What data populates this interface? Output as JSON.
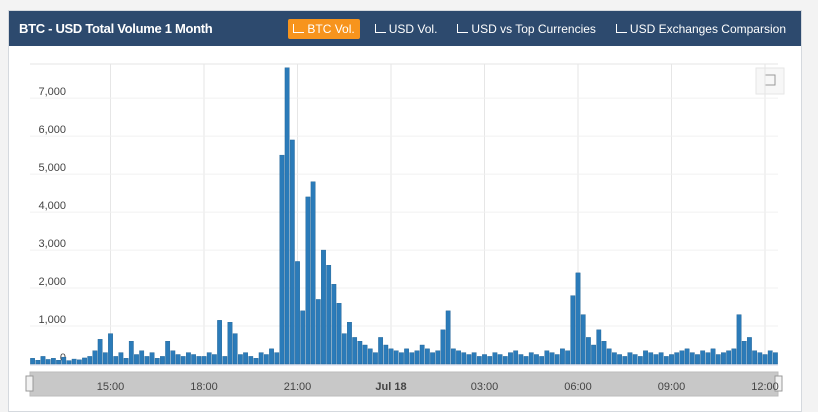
{
  "header": {
    "title": "BTC - USD Total Volume 1 Month",
    "buttons": [
      "BTC Vol.",
      "USD Vol.",
      "USD vs Top Currencies",
      "USD Exchanges Comparsion"
    ],
    "active": 0
  },
  "chart_data": {
    "type": "bar",
    "color": "#2b7bb9",
    "grid": true,
    "ylim": [
      0,
      7900
    ],
    "yticks": [
      0,
      {
        "value": 1000,
        "label": "1,000"
      },
      {
        "value": 2000,
        "label": "2,000"
      },
      {
        "value": 3000,
        "label": "3,000"
      },
      {
        "value": 4000,
        "label": "4,000"
      },
      {
        "value": 5000,
        "label": "5,000"
      },
      {
        "value": 6000,
        "label": "6,000"
      },
      {
        "value": 7000,
        "label": "7,000"
      }
    ],
    "categories": [
      null,
      null,
      null,
      null,
      null,
      null,
      null,
      null,
      null,
      null,
      null,
      null,
      null,
      null,
      null,
      "15:00",
      null,
      null,
      null,
      null,
      null,
      null,
      null,
      null,
      null,
      null,
      null,
      null,
      null,
      null,
      null,
      null,
      null,
      "18:00",
      null,
      null,
      null,
      null,
      null,
      null,
      null,
      null,
      null,
      null,
      null,
      null,
      null,
      null,
      null,
      null,
      null,
      "21:00",
      null,
      null,
      null,
      null,
      null,
      null,
      null,
      null,
      null,
      null,
      null,
      null,
      null,
      null,
      null,
      null,
      null,
      "Jul 18",
      null,
      null,
      null,
      null,
      null,
      null,
      null,
      null,
      null,
      null,
      null,
      null,
      null,
      null,
      null,
      null,
      null,
      "03:00",
      null,
      null,
      null,
      null,
      null,
      null,
      null,
      null,
      null,
      null,
      null,
      null,
      null,
      null,
      null,
      null,
      null,
      "06:00",
      null,
      null,
      null,
      null,
      null,
      null,
      null,
      null,
      null,
      null,
      null,
      null,
      null,
      null,
      null,
      null,
      null,
      "09:00",
      null,
      null,
      null,
      null,
      null,
      null,
      null,
      null,
      null,
      null,
      null,
      null,
      null,
      null,
      null,
      null,
      null,
      "12:00",
      null,
      null
    ],
    "values": [
      150,
      100,
      200,
      120,
      150,
      100,
      180,
      90,
      130,
      110,
      160,
      200,
      350,
      650,
      300,
      800,
      200,
      300,
      150,
      600,
      250,
      350,
      200,
      300,
      150,
      200,
      600,
      350,
      250,
      200,
      300,
      250,
      200,
      200,
      300,
      250,
      1150,
      200,
      1100,
      800,
      250,
      300,
      200,
      150,
      300,
      250,
      400,
      300,
      5500,
      7800,
      5900,
      2700,
      1400,
      4400,
      4800,
      1700,
      3000,
      2600,
      2100,
      1600,
      800,
      1100,
      700,
      600,
      500,
      400,
      300,
      700,
      500,
      400,
      350,
      300,
      400,
      300,
      350,
      500,
      400,
      300,
      350,
      900,
      1400,
      400,
      350,
      300,
      250,
      300,
      200,
      250,
      200,
      300,
      250,
      200,
      300,
      350,
      250,
      200,
      300,
      250,
      200,
      350,
      300,
      250,
      400,
      350,
      1800,
      2400,
      1300,
      700,
      500,
      900,
      600,
      400,
      300,
      250,
      200,
      300,
      250,
      200,
      350,
      300,
      250,
      300,
      200,
      250,
      300,
      350,
      400,
      300,
      250,
      350,
      300,
      400,
      250,
      300,
      350,
      400,
      1300,
      600,
      700,
      350,
      300,
      250,
      350,
      300
    ]
  }
}
